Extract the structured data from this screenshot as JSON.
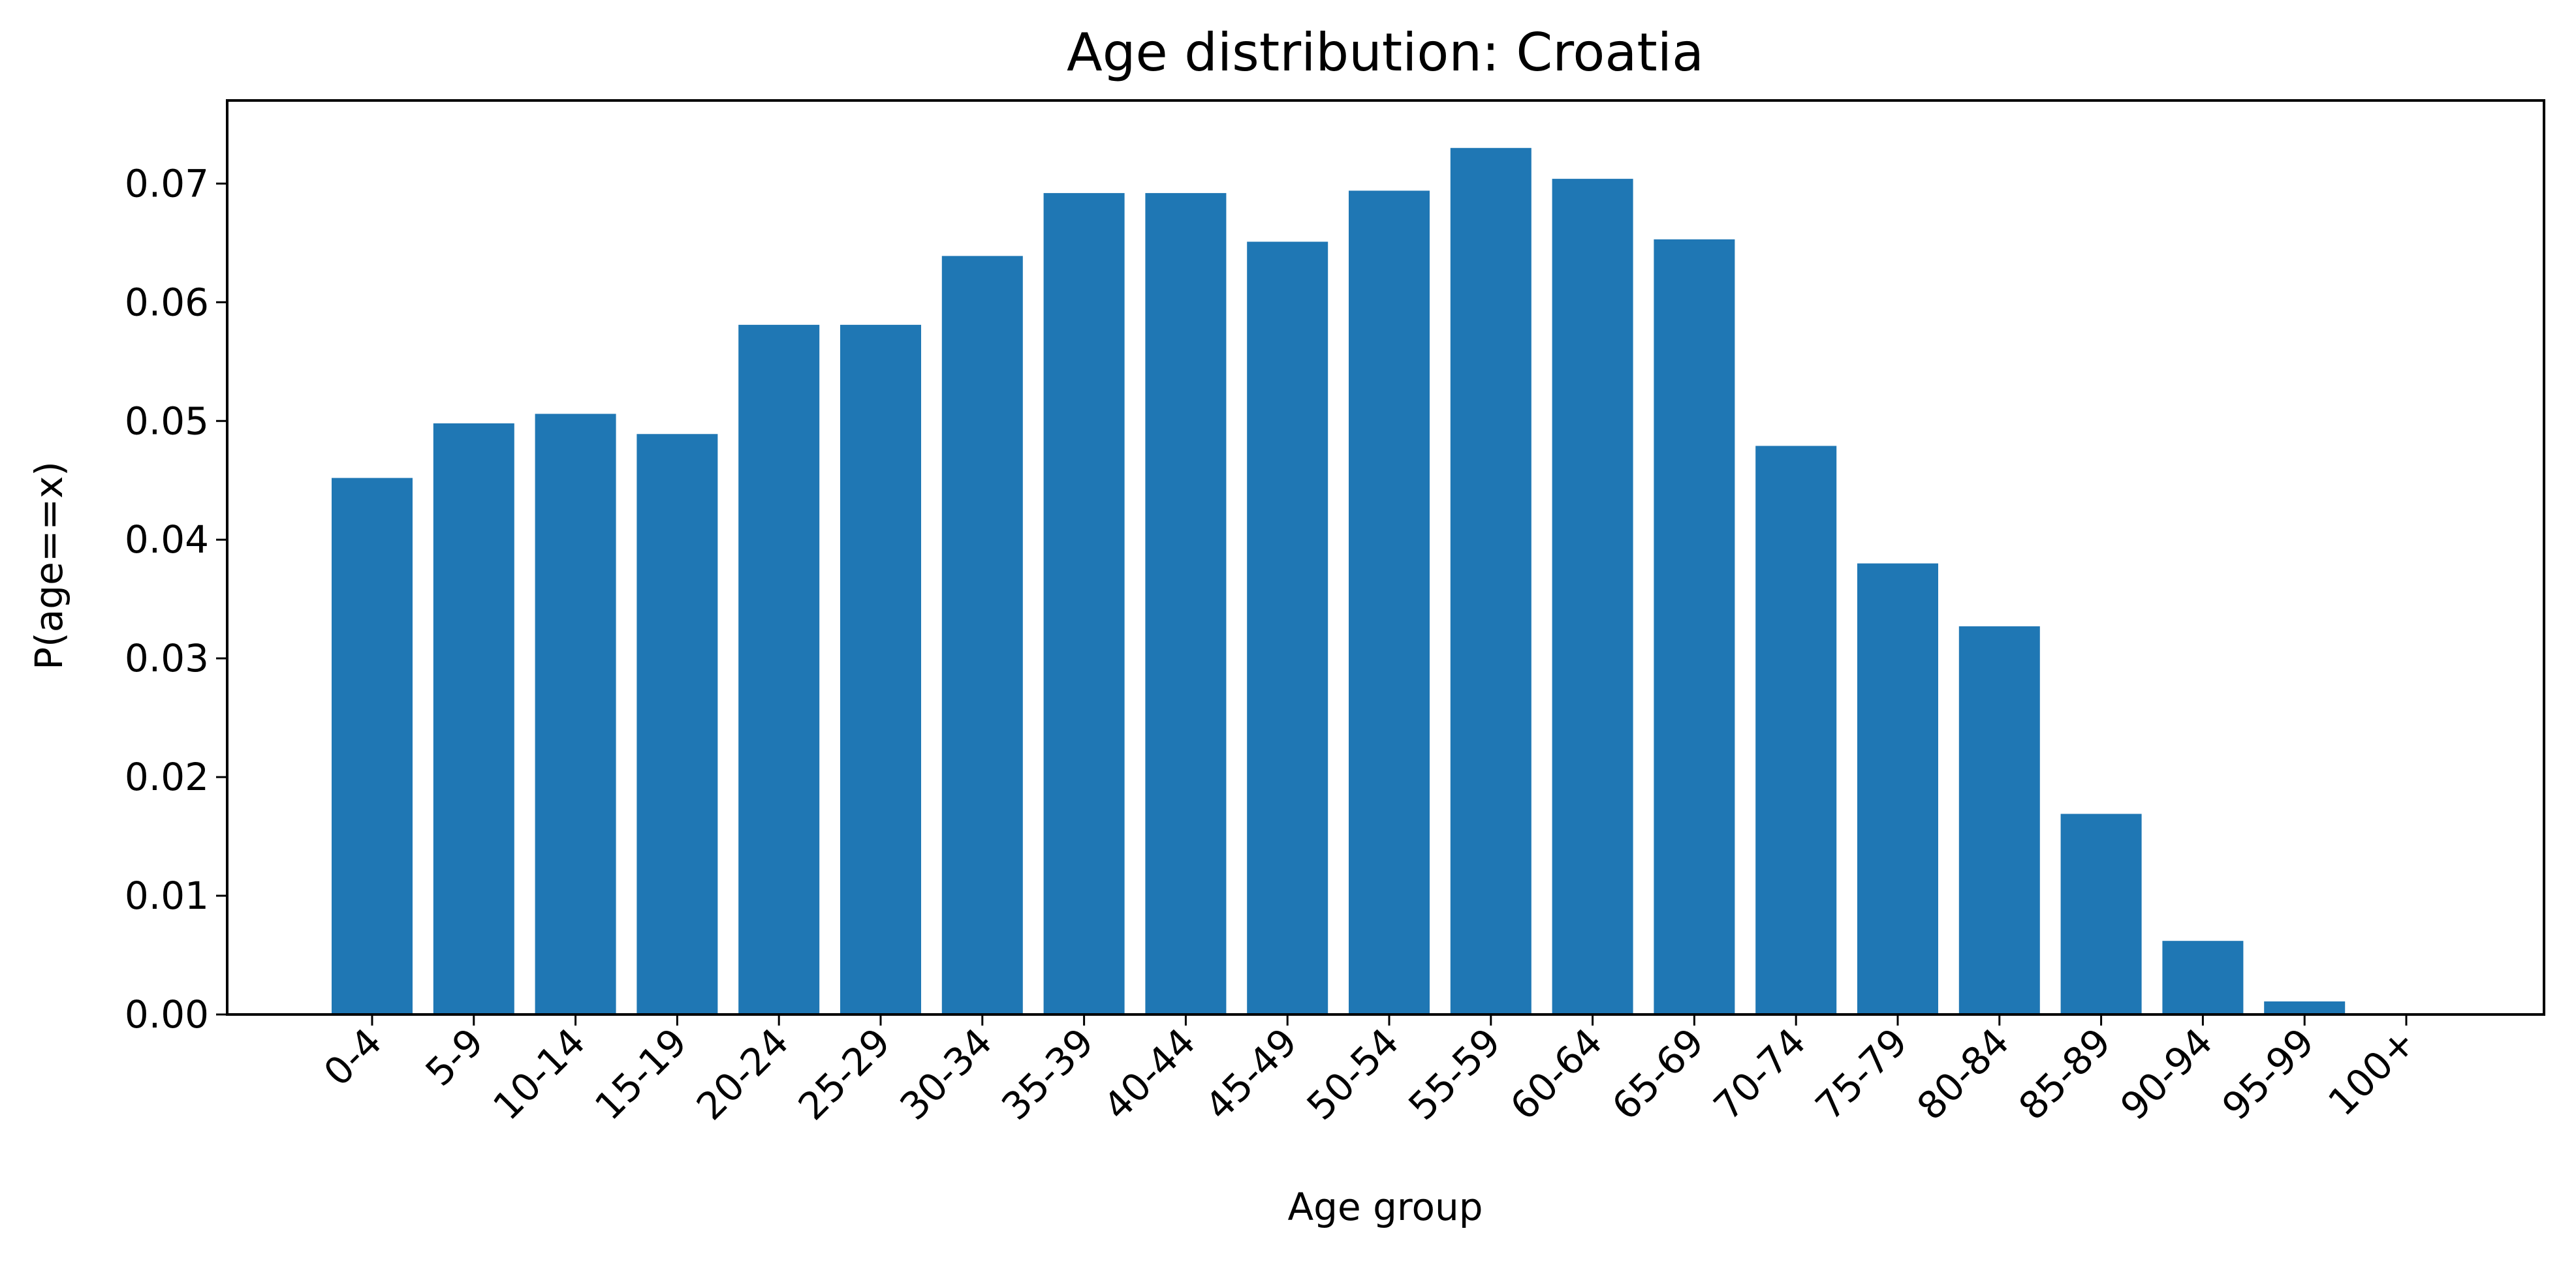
{
  "chart_data": {
    "type": "bar",
    "title": "Age distribution: Croatia",
    "xlabel": "Age group",
    "ylabel": "P(age==x)",
    "categories": [
      "0-4",
      "5-9",
      "10-14",
      "15-19",
      "20-24",
      "25-29",
      "30-34",
      "35-39",
      "40-44",
      "45-49",
      "50-54",
      "55-59",
      "60-64",
      "65-69",
      "70-74",
      "75-79",
      "80-84",
      "85-89",
      "90-94",
      "95-99",
      "100+"
    ],
    "values": [
      0.0452,
      0.0498,
      0.0506,
      0.0489,
      0.0581,
      0.0581,
      0.0639,
      0.0692,
      0.0692,
      0.0651,
      0.0694,
      0.073,
      0.0704,
      0.0653,
      0.0479,
      0.038,
      0.0327,
      0.0169,
      0.0062,
      0.0011,
      0.0
    ],
    "yticks": [
      "0.00",
      "0.01",
      "0.02",
      "0.03",
      "0.04",
      "0.05",
      "0.06",
      "0.07"
    ],
    "ylim": [
      0,
      0.077
    ],
    "grid": false,
    "bar_color": "#1f77b4",
    "axis_color": "#000000"
  }
}
